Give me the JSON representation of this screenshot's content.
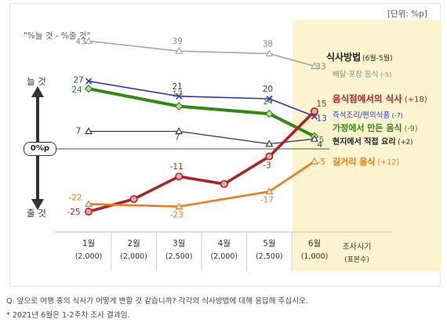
{
  "unit_label": "[단위: %p]",
  "formula_label": "\"%늘 것 - %줄 것\"",
  "axis_labels": {
    "increase": "늘 것",
    "decrease": "줄 것",
    "zero": "0%p"
  },
  "x_axis_title": {
    "line1": "조사시기",
    "line2": "(표본수)"
  },
  "legend_title": "식사방법",
  "legend_period": "(6월-5월)",
  "footnotes": [
    "Q. 앞으로 여행 중의 식사가 어떻게 변할 것 같습니까? 각각의 식사방법에 대해 응답해 주십시오.",
    "* 2021년 6월은 1-2주차 조사 결과임."
  ],
  "colors": {
    "highlight": "#fcf3cf",
    "delivery": "#a6a6a6",
    "restaurant": "#b02222",
    "instant": "#2a36c8",
    "homemade": "#2f8a15",
    "local": "#3d3d3d",
    "street": "#ef7a16"
  },
  "chart_data": {
    "type": "line",
    "categories": [
      "1월",
      "2월",
      "3월",
      "4월",
      "5월",
      "6월"
    ],
    "sample_sizes": [
      "(2,000)",
      "(2,000)",
      "(2,500)",
      "(2,000)",
      "(2,500)",
      "(1,000)"
    ],
    "highlight_category": "6월",
    "ylim": [
      -30,
      45
    ],
    "series": [
      {
        "key": "delivery",
        "name": "배달·포장 음식",
        "change": "(-5)",
        "values": [
          43,
          null,
          39,
          null,
          38,
          33
        ],
        "labels": [
          "43",
          "",
          "39",
          "",
          "38",
          "33"
        ],
        "marker": "triangle"
      },
      {
        "key": "instant",
        "name": "즉석조리/편의식품",
        "change": "(-7)",
        "values": [
          27,
          null,
          21,
          null,
          20,
          13
        ],
        "labels": [
          "27",
          "",
          "21",
          "",
          "20",
          "13"
        ],
        "marker": "x"
      },
      {
        "key": "homemade",
        "name": "가정에서 만든 음식",
        "change": "(-9)",
        "values": [
          24,
          null,
          17,
          null,
          14,
          5
        ],
        "labels": [
          "24",
          "",
          "17",
          "",
          "14",
          "5"
        ],
        "marker": "diamond"
      },
      {
        "key": "local",
        "name": "현지에서 직접 요리",
        "change": "(+2)",
        "values": [
          7,
          null,
          7,
          null,
          2,
          4
        ],
        "labels": [
          "7",
          "",
          "7",
          "",
          "",
          "4"
        ],
        "marker": "triangle"
      },
      {
        "key": "restaurant",
        "name": "음식점에서의 식사",
        "change": "(+18)",
        "values": [
          -25,
          -20,
          -11,
          -14,
          -3,
          15
        ],
        "labels": [
          "-25",
          "",
          "-11",
          "",
          "-3",
          "15"
        ],
        "marker": "circle"
      },
      {
        "key": "street",
        "name": "길거리 음식",
        "change": "(+12)",
        "values": [
          -22,
          null,
          -23,
          null,
          -17,
          -5
        ],
        "labels": [
          "-22",
          "",
          "-23",
          "",
          "-17",
          "-5"
        ],
        "marker": "triangle"
      }
    ]
  }
}
